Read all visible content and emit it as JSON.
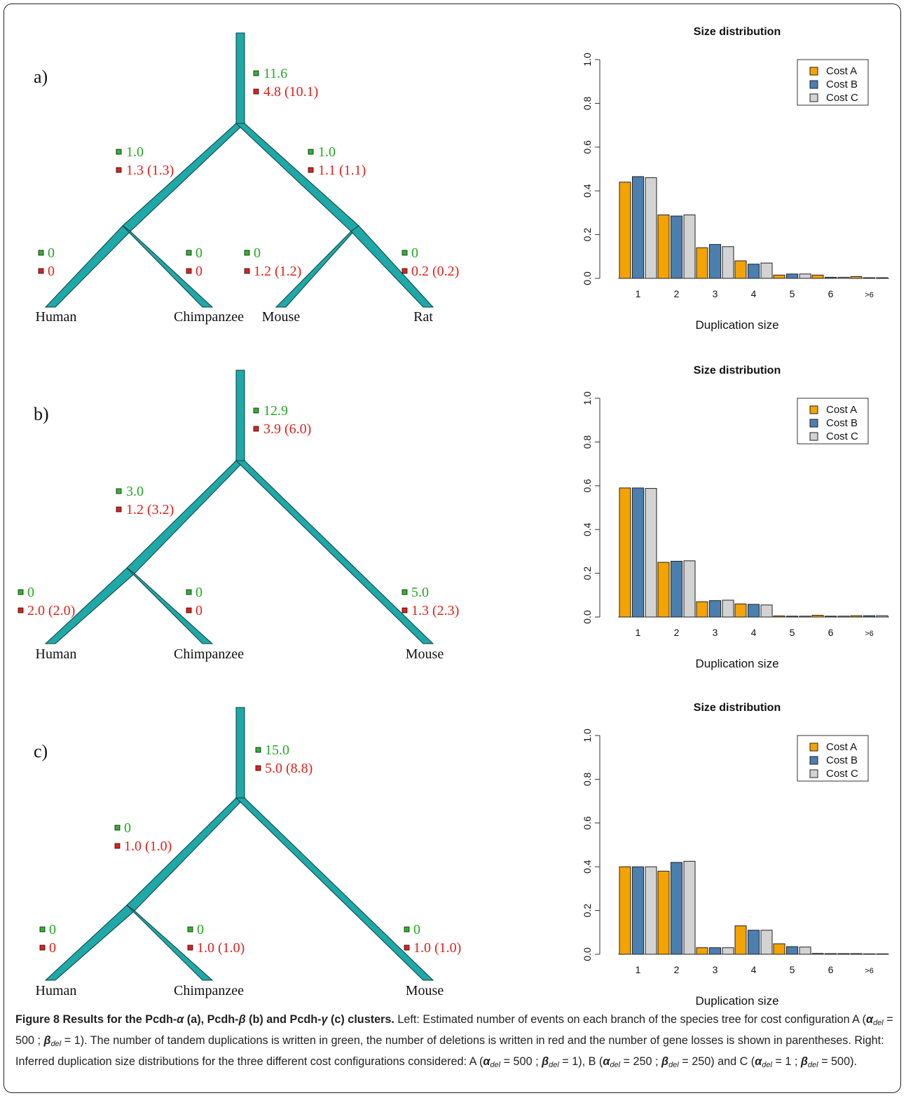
{
  "colors": {
    "branch": "#1fa8a8",
    "dup_marker": "#2fb52f",
    "dup_text": "#22a822",
    "del_marker": "#e0201b",
    "del_text": "#e0201b",
    "cost_a": "#f5a300",
    "cost_b": "#4a7fb0",
    "cost_c": "#d3d3d3"
  },
  "panels": [
    {
      "id": "a",
      "letter": "a)",
      "leaves": [
        "Human",
        "Chimpanzee",
        "Mouse",
        "Rat"
      ],
      "branches": {
        "root": {
          "dup": "11.6",
          "del": "4.8 (10.1)"
        },
        "left_internal": {
          "dup": "1.0",
          "del": "1.3 (1.3)"
        },
        "right_internal": {
          "dup": "1.0",
          "del": "1.1 (1.1)"
        },
        "leaf_1": {
          "dup": "0",
          "del": "0"
        },
        "leaf_2": {
          "dup": "0",
          "del": "0"
        },
        "leaf_3": {
          "dup": "0",
          "del": "1.2 (1.2)"
        },
        "leaf_4": {
          "dup": "0",
          "del": "0.2 (0.2)"
        }
      }
    },
    {
      "id": "b",
      "letter": "b)",
      "leaves": [
        "Human",
        "Chimpanzee",
        "Mouse"
      ],
      "branches": {
        "root": {
          "dup": "12.9",
          "del": "3.9 (6.0)"
        },
        "left_internal": {
          "dup": "3.0",
          "del": "1.2 (3.2)"
        },
        "leaf_1": {
          "dup": "0",
          "del": "2.0 (2.0)"
        },
        "leaf_2": {
          "dup": "0",
          "del": "0"
        },
        "leaf_3": {
          "dup": "5.0",
          "del": "1.3 (2.3)"
        }
      }
    },
    {
      "id": "c",
      "letter": "c)",
      "leaves": [
        "Human",
        "Chimpanzee",
        "Mouse"
      ],
      "branches": {
        "root": {
          "dup": "15.0",
          "del": "5.0 (8.8)"
        },
        "left_internal": {
          "dup": "0",
          "del": "1.0 (1.0)"
        },
        "leaf_1": {
          "dup": "0",
          "del": "0"
        },
        "leaf_2": {
          "dup": "0",
          "del": "1.0 (1.0)"
        },
        "leaf_3": {
          "dup": "0",
          "del": "1.0 (1.0)"
        }
      }
    }
  ],
  "chart_data": [
    {
      "type": "bar",
      "title": "Size distribution",
      "xlabel": "Duplication size",
      "ylabel": "",
      "ylim": [
        0,
        1
      ],
      "yticks": [
        "0.0",
        "0.2",
        "0.4",
        "0.6",
        "0.8",
        "1.0"
      ],
      "categories": [
        "1",
        "2",
        "3",
        "4",
        "5",
        "6",
        ">6"
      ],
      "legend_position": "top-right",
      "series": [
        {
          "name": "Cost A",
          "values": [
            0.44,
            0.29,
            0.14,
            0.08,
            0.015,
            0.015,
            0.008
          ]
        },
        {
          "name": "Cost B",
          "values": [
            0.465,
            0.285,
            0.155,
            0.065,
            0.02,
            0.005,
            0.003
          ]
        },
        {
          "name": "Cost C",
          "values": [
            0.46,
            0.29,
            0.145,
            0.07,
            0.02,
            0.005,
            0.003
          ]
        }
      ]
    },
    {
      "type": "bar",
      "title": "Size distribution",
      "xlabel": "Duplication size",
      "ylabel": "",
      "ylim": [
        0,
        1
      ],
      "yticks": [
        "0.0",
        "0.2",
        "0.4",
        "0.6",
        "0.8",
        "1.0"
      ],
      "categories": [
        "1",
        "2",
        "3",
        "4",
        "5",
        "6",
        ">6"
      ],
      "legend_position": "top-right",
      "series": [
        {
          "name": "Cost A",
          "values": [
            0.59,
            0.25,
            0.07,
            0.06,
            0.005,
            0.008,
            0.006
          ]
        },
        {
          "name": "Cost B",
          "values": [
            0.59,
            0.255,
            0.075,
            0.058,
            0.004,
            0.004,
            0.006
          ]
        },
        {
          "name": "Cost C",
          "values": [
            0.588,
            0.257,
            0.077,
            0.055,
            0.004,
            0.004,
            0.006
          ]
        }
      ]
    },
    {
      "type": "bar",
      "title": "Size distribution",
      "xlabel": "Duplication size",
      "ylabel": "",
      "ylim": [
        0,
        1
      ],
      "yticks": [
        "0.0",
        "0.2",
        "0.4",
        "0.6",
        "0.8",
        "1.0"
      ],
      "categories": [
        "1",
        "2",
        "3",
        "4",
        "5",
        "6",
        ">6"
      ],
      "legend_position": "top-right",
      "series": [
        {
          "name": "Cost A",
          "values": [
            0.4,
            0.38,
            0.03,
            0.13,
            0.048,
            0.004,
            0.003
          ]
        },
        {
          "name": "Cost B",
          "values": [
            0.4,
            0.42,
            0.03,
            0.11,
            0.035,
            0.003,
            0.002
          ]
        },
        {
          "name": "Cost C",
          "values": [
            0.4,
            0.425,
            0.03,
            0.11,
            0.033,
            0.003,
            0.002
          ]
        }
      ]
    }
  ],
  "caption": {
    "label": "Figure 8",
    "title_1": "Results for the Pcdh-",
    "title_alpha": "α",
    "title_2": " (a), Pcdh-",
    "title_beta": "β",
    "title_3": " (b) and Pcdh-",
    "title_gamma": "γ",
    "title_4": " (c) clusters.",
    "body_1": " Left: Estimated number of events on each branch of the species tree for cost configuration A (",
    "alpha": "α",
    "beta": "β",
    "del_sub": "del",
    "eq_500_sep": " = 500 ; ",
    "eq_1_close": " = 1). ",
    "body_2": "The number of tandem duplications is written in green, the number of deletions is written in red and the number of gene losses is shown in parentheses. Right: Inferred duplication size distributions for the three different cost configurations considered: A (",
    "eq_1_close_b": " = 1), B (",
    "eq_250_sep": " = 250 ; ",
    "eq_250_close": " = 250) and C (",
    "eq_1_sep": " = 1 ; ",
    "eq_500_close": " = 500)."
  }
}
